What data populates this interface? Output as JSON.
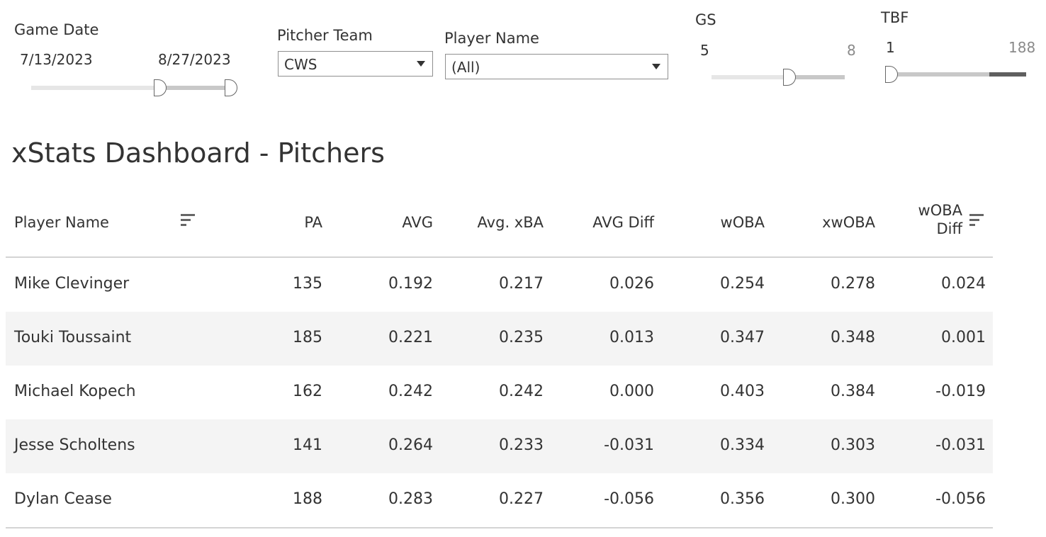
{
  "filters": {
    "game_date": {
      "label": "Game Date",
      "start": "7/13/2023",
      "end": "8/27/2023"
    },
    "pitcher_team": {
      "label": "Pitcher Team",
      "value": "CWS"
    },
    "player_name": {
      "label": "Player Name",
      "value": "(All)"
    },
    "gs": {
      "label": "GS",
      "min": "5",
      "max": "8"
    },
    "tbf": {
      "label": "TBF",
      "min": "1",
      "max": "188"
    }
  },
  "dashboard": {
    "title": "xStats Dashboard - Pitchers"
  },
  "table": {
    "headers": {
      "player_name": "Player Name",
      "pa": "PA",
      "avg": "AVG",
      "xba": "Avg. xBA",
      "avg_diff": "AVG Diff",
      "woba": "wOBA",
      "xwoba": "xwOBA",
      "woba_diff_1": "wOBA",
      "woba_diff_2": "Diff"
    },
    "rows": [
      {
        "name": "Mike Clevinger",
        "pa": "135",
        "avg": "0.192",
        "xba": "0.217",
        "avg_diff": "0.026",
        "woba": "0.254",
        "xwoba": "0.278",
        "woba_diff": "0.024"
      },
      {
        "name": "Touki Toussaint",
        "pa": "185",
        "avg": "0.221",
        "xba": "0.235",
        "avg_diff": "0.013",
        "woba": "0.347",
        "xwoba": "0.348",
        "woba_diff": "0.001"
      },
      {
        "name": "Michael Kopech",
        "pa": "162",
        "avg": "0.242",
        "xba": "0.242",
        "avg_diff": "0.000",
        "woba": "0.403",
        "xwoba": "0.384",
        "woba_diff": "-0.019"
      },
      {
        "name": "Jesse Scholtens",
        "pa": "141",
        "avg": "0.264",
        "xba": "0.233",
        "avg_diff": "-0.031",
        "woba": "0.334",
        "xwoba": "0.303",
        "woba_diff": "-0.031"
      },
      {
        "name": "Dylan Cease",
        "pa": "188",
        "avg": "0.283",
        "xba": "0.227",
        "avg_diff": "-0.056",
        "woba": "0.356",
        "xwoba": "0.300",
        "woba_diff": "-0.056"
      }
    ]
  },
  "colors": {
    "text": "#333333",
    "row_alt": "#f4f4f4",
    "track": "#e6e6e6",
    "track_selected": "#c8c8c8",
    "track_dark": "#5f5f5f"
  }
}
